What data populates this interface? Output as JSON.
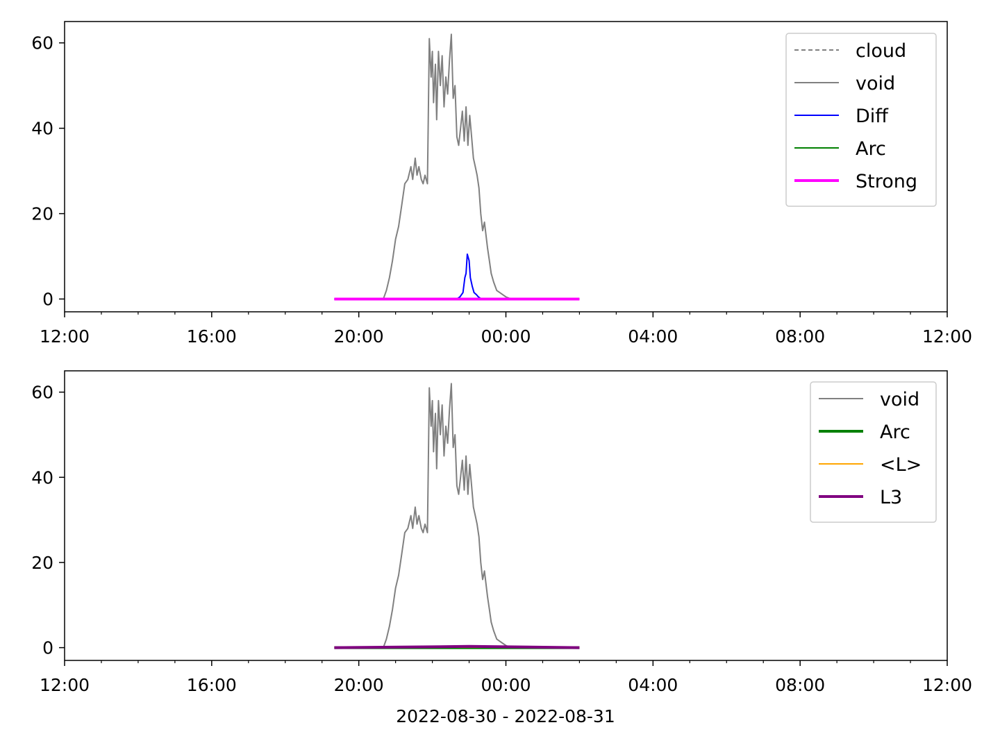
{
  "chart_data": [
    {
      "type": "line",
      "title": "",
      "xlabel": "",
      "ylabel": "",
      "xlim": [
        "2022-08-30T12:00",
        "2022-08-31T12:00"
      ],
      "ylim": [
        -3,
        65
      ],
      "xticks": [
        "12:00",
        "16:00",
        "20:00",
        "00:00",
        "04:00",
        "08:00",
        "12:00"
      ],
      "yticks": [
        0,
        20,
        40,
        60
      ],
      "grid": false,
      "legend_position": "upper-right",
      "series": [
        {
          "name": "cloud",
          "color": "#808080",
          "style": "dashed",
          "x": [],
          "y": []
        },
        {
          "name": "void",
          "color": "#808080",
          "style": "solid",
          "ref": "void"
        },
        {
          "name": "Diff",
          "color": "#0000ff",
          "style": "solid",
          "x": [
            "2022-08-30T19:20",
            "2022-08-30T22:40",
            "2022-08-30T22:45",
            "2022-08-30T22:50",
            "2022-08-30T22:53",
            "2022-08-30T22:55",
            "2022-08-30T22:57",
            "2022-08-30T23:00",
            "2022-08-30T23:02",
            "2022-08-30T23:05",
            "2022-08-30T23:08",
            "2022-08-30T23:12",
            "2022-08-30T23:15",
            "2022-08-30T23:18",
            "2022-08-30T23:20",
            "2022-08-31T02:00"
          ],
          "y": [
            0,
            0,
            0.5,
            1.5,
            5,
            6,
            10.5,
            9,
            5,
            3,
            1.5,
            1,
            0.5,
            0.2,
            0,
            0
          ]
        },
        {
          "name": "Arc",
          "color": "#008000",
          "style": "solid",
          "x": [
            "2022-08-30T19:20",
            "2022-08-31T02:00"
          ],
          "y": [
            0,
            0
          ]
        },
        {
          "name": "Strong",
          "color": "#ff00ff",
          "style": "solid-thick",
          "x": [
            "2022-08-30T19:20",
            "2022-08-31T02:00"
          ],
          "y": [
            0,
            0
          ]
        }
      ]
    },
    {
      "type": "line",
      "title": "",
      "xlabel": "2022-08-30 - 2022-08-31",
      "ylabel": "",
      "xlim": [
        "2022-08-30T12:00",
        "2022-08-31T12:00"
      ],
      "ylim": [
        -3,
        65
      ],
      "xticks": [
        "12:00",
        "16:00",
        "20:00",
        "00:00",
        "04:00",
        "08:00",
        "12:00"
      ],
      "yticks": [
        0,
        20,
        40,
        60
      ],
      "grid": false,
      "legend_position": "upper-right",
      "series": [
        {
          "name": "void",
          "color": "#808080",
          "style": "solid",
          "ref": "void"
        },
        {
          "name": "Arc",
          "color": "#008000",
          "style": "solid-thick",
          "x": [
            "2022-08-30T19:20",
            "2022-08-31T02:00"
          ],
          "y": [
            0,
            0
          ]
        },
        {
          "name": "<L>",
          "color": "#ffa500",
          "style": "solid",
          "x": [
            "2022-08-30T19:20",
            "2022-08-31T02:00"
          ],
          "y": [
            0.1,
            0.1
          ]
        },
        {
          "name": "L3",
          "color": "#800080",
          "style": "solid-thick",
          "x": [
            "2022-08-30T19:20",
            "2022-08-30T22:00",
            "2022-08-30T23:00",
            "2022-08-31T02:00"
          ],
          "y": [
            0,
            0.2,
            0.3,
            0
          ]
        }
      ]
    }
  ],
  "void_series": {
    "x": [
      "2022-08-30T20:40",
      "2022-08-30T20:45",
      "2022-08-30T20:50",
      "2022-08-30T20:55",
      "2022-08-30T21:00",
      "2022-08-30T21:05",
      "2022-08-30T21:10",
      "2022-08-30T21:15",
      "2022-08-30T21:20",
      "2022-08-30T21:25",
      "2022-08-30T21:28",
      "2022-08-30T21:32",
      "2022-08-30T21:35",
      "2022-08-30T21:38",
      "2022-08-30T21:42",
      "2022-08-30T21:45",
      "2022-08-30T21:48",
      "2022-08-30T21:52",
      "2022-08-30T21:55",
      "2022-08-30T21:58",
      "2022-08-30T22:00",
      "2022-08-30T22:02",
      "2022-08-30T22:05",
      "2022-08-30T22:07",
      "2022-08-30T22:10",
      "2022-08-30T22:13",
      "2022-08-30T22:16",
      "2022-08-30T22:19",
      "2022-08-30T22:22",
      "2022-08-30T22:25",
      "2022-08-30T22:28",
      "2022-08-30T22:31",
      "2022-08-30T22:34",
      "2022-08-30T22:37",
      "2022-08-30T22:40",
      "2022-08-30T22:43",
      "2022-08-30T22:46",
      "2022-08-30T22:49",
      "2022-08-30T22:52",
      "2022-08-30T22:55",
      "2022-08-30T22:58",
      "2022-08-30T23:01",
      "2022-08-30T23:04",
      "2022-08-30T23:07",
      "2022-08-30T23:10",
      "2022-08-30T23:13",
      "2022-08-30T23:16",
      "2022-08-30T23:19",
      "2022-08-30T23:22",
      "2022-08-30T23:25",
      "2022-08-30T23:30",
      "2022-08-30T23:33",
      "2022-08-30T23:36",
      "2022-08-30T23:40",
      "2022-08-30T23:45",
      "2022-08-30T23:50",
      "2022-08-30T23:55",
      "2022-08-31T00:00",
      "2022-08-31T00:05",
      "2022-08-31T00:10",
      "2022-08-31T00:15",
      "2022-08-31T00:20"
    ],
    "y": [
      0,
      2,
      5,
      9,
      14,
      17,
      22,
      27,
      28,
      31,
      28,
      33,
      29,
      31,
      28,
      27,
      29,
      27,
      61,
      52,
      58,
      46,
      55,
      42,
      58,
      50,
      57,
      45,
      52,
      48,
      56,
      62,
      47,
      50,
      38,
      36,
      40,
      44,
      37,
      45,
      36,
      43,
      38,
      33,
      31,
      29,
      26,
      20,
      16,
      18,
      12,
      9,
      6,
      4,
      2,
      1.5,
      1,
      0.5,
      0.2,
      0,
      0,
      0
    ]
  }
}
